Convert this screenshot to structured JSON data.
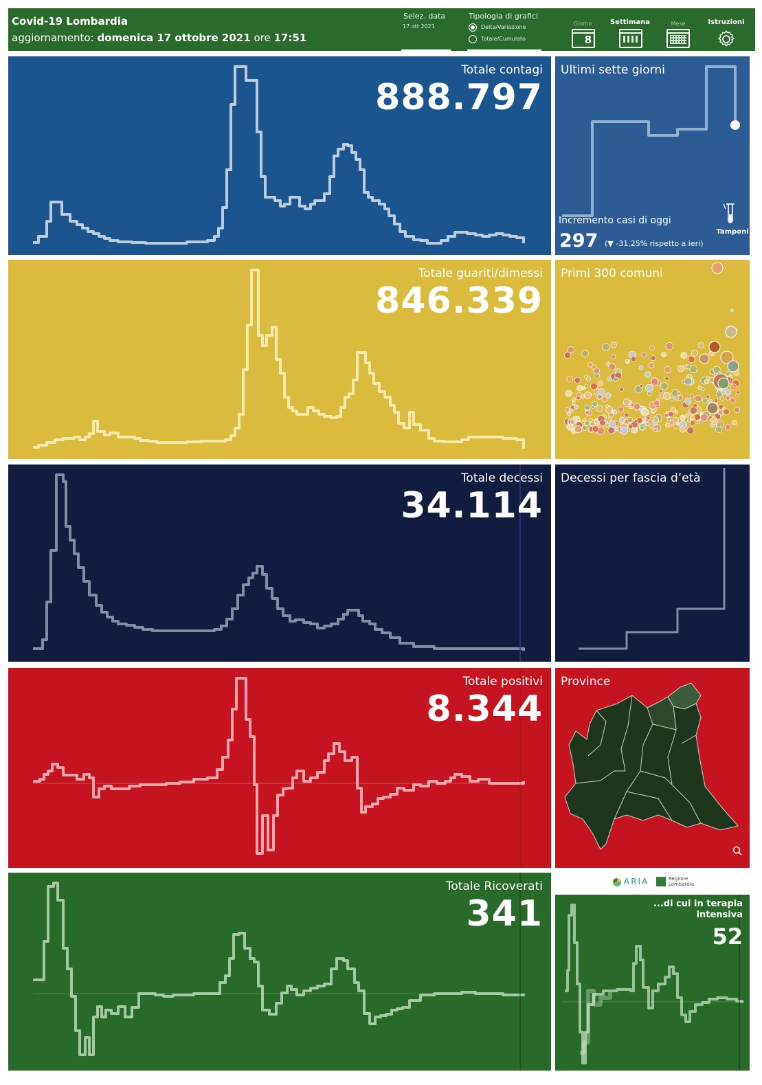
{
  "header": {
    "title": "Covid-19 Lombardia",
    "update_prefix": "aggiornamento:",
    "update_date": "domenica 17 ottobre 2021",
    "update_mid": "ore",
    "update_time": "17:51",
    "date_selector_label": "Selez. data",
    "date_selector_value": "17 ott 2021",
    "chart_type_label": "Tipologia di grafici",
    "chart_type_options": [
      "Delta/Variazione",
      "Totale/Cumulato"
    ],
    "chart_type_selected": "Delta/Variazione",
    "nav": {
      "day_label": "Giorno",
      "day_number": "8",
      "week_label": "Settimana",
      "month_label": "Mese",
      "instructions_label": "Istruzioni"
    }
  },
  "panels": {
    "contagi": {
      "title": "Totale contagi",
      "value": "888.797",
      "color": "#1a5590"
    },
    "guariti": {
      "title": "Totale guariti/dimessi",
      "value": "846.339",
      "color": "#dbbb3e"
    },
    "decessi": {
      "title": "Totale decessi",
      "value": "34.114",
      "color": "#111c3f"
    },
    "positivi": {
      "title": "Totale positivi",
      "value": "8.344",
      "color": "#c51420"
    },
    "ricoverati": {
      "title": "Totale Ricoverati",
      "value": "341",
      "color": "#276a2a"
    }
  },
  "side": {
    "last_seven": {
      "title": "Ultimi sette giorni",
      "increment_label": "Incremento casi di oggi",
      "increment_value": "297",
      "change_text": "(▼ -31,25% rispetto a  ieri)",
      "tamponi_label": "Tamponi",
      "color": "#2c5c95"
    },
    "comuni": {
      "title": "Primi 300 comuni",
      "color": "#dbbb3e"
    },
    "eta": {
      "title": "Decessi per fascia d’età",
      "color": "#111c3f"
    },
    "province": {
      "title": "Province",
      "color": "#c51420"
    },
    "terapia": {
      "title": "...di cui in terapia intensiva",
      "value": "52",
      "color": "#276a2a"
    }
  },
  "logos": {
    "aria": "ARIA",
    "regione": "Regione Lombardia"
  },
  "icons": [
    "radio-selected-icon",
    "radio-icon",
    "calendar-day-icon",
    "calendar-week-icon",
    "calendar-month-icon",
    "gear-icon",
    "test-tube-icon",
    "zoom-map-icon",
    "regione-lombardia-logo"
  ]
}
